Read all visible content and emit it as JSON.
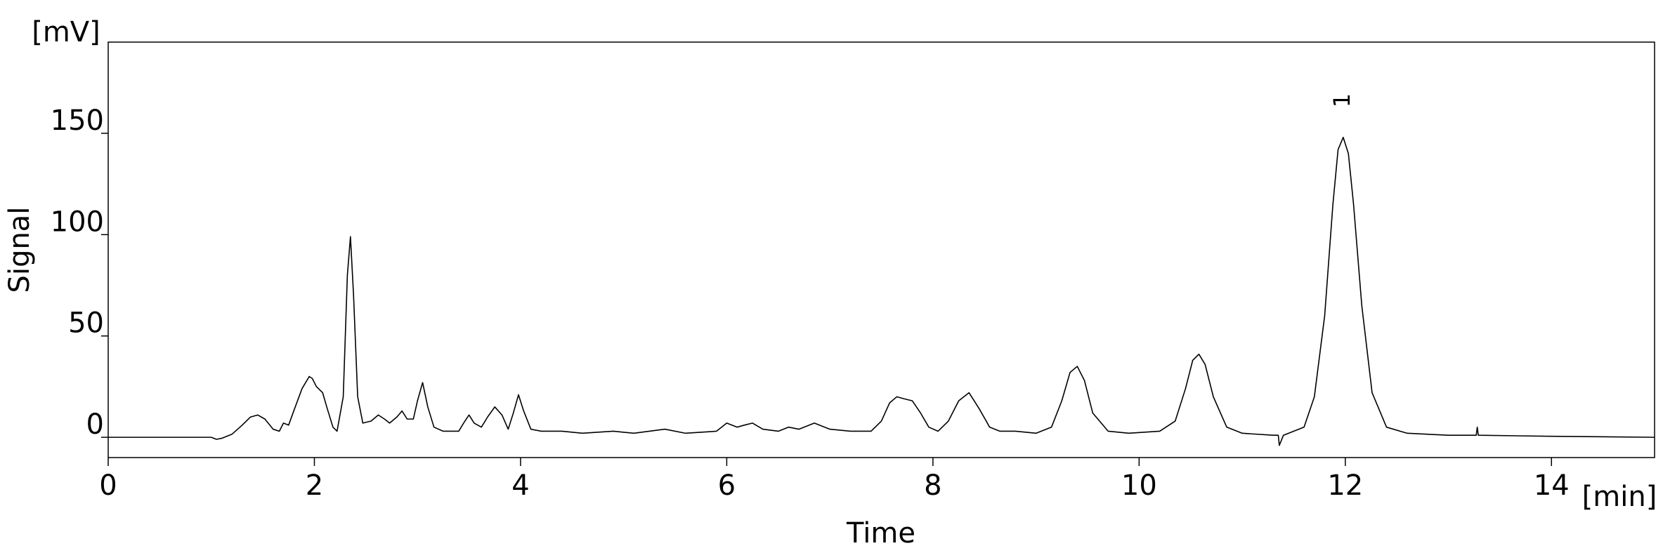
{
  "chart_data": {
    "type": "line",
    "x_label": "Time",
    "y_label": "Signal",
    "x_unit": "[min]",
    "y_unit": "[mV]",
    "color": "#000000",
    "xlim": [
      0,
      15
    ],
    "xticks": [
      0,
      2,
      4,
      6,
      8,
      10,
      12,
      14
    ],
    "ylim": [
      -10,
      195
    ],
    "yticks": [
      0,
      50,
      100,
      150
    ],
    "grid": false,
    "annotations": [
      {
        "text": "1",
        "x": 11.98
      }
    ],
    "x": [
      0,
      1.0,
      1.05,
      1.1,
      1.2,
      1.3,
      1.38,
      1.45,
      1.52,
      1.6,
      1.66,
      1.7,
      1.75,
      1.8,
      1.88,
      1.95,
      1.98,
      2.02,
      2.08,
      2.12,
      2.18,
      2.22,
      2.28,
      2.32,
      2.35,
      2.38,
      2.42,
      2.47,
      2.55,
      2.62,
      2.68,
      2.73,
      2.8,
      2.85,
      2.9,
      2.96,
      3.0,
      3.05,
      3.1,
      3.16,
      3.25,
      3.4,
      3.46,
      3.5,
      3.55,
      3.62,
      3.68,
      3.75,
      3.82,
      3.88,
      3.93,
      3.98,
      4.03,
      4.1,
      4.2,
      4.4,
      4.6,
      4.9,
      5.1,
      5.4,
      5.6,
      5.9,
      6.0,
      6.1,
      6.17,
      6.25,
      6.35,
      6.5,
      6.6,
      6.7,
      6.85,
      7.0,
      7.2,
      7.4,
      7.5,
      7.58,
      7.65,
      7.72,
      7.8,
      7.88,
      7.96,
      8.05,
      8.15,
      8.25,
      8.35,
      8.45,
      8.55,
      8.65,
      8.8,
      9.0,
      9.15,
      9.25,
      9.33,
      9.4,
      9.47,
      9.55,
      9.7,
      9.9,
      10.2,
      10.35,
      10.45,
      10.52,
      10.58,
      10.64,
      10.72,
      10.85,
      11.0,
      11.3,
      11.35,
      11.36,
      11.4,
      11.6,
      11.7,
      11.8,
      11.88,
      11.93,
      11.98,
      12.03,
      12.08,
      12.16,
      12.26,
      12.4,
      12.6,
      13.0,
      13.27,
      13.28,
      13.29,
      14.0,
      15.0
    ],
    "values": [
      0,
      0,
      -1,
      -0.5,
      1.5,
      6,
      10,
      11,
      9,
      4,
      3,
      7,
      6,
      13,
      24,
      30,
      29,
      25,
      22,
      15,
      5,
      3,
      20,
      80,
      99,
      70,
      20,
      7,
      8,
      11,
      9,
      7,
      10,
      13,
      9,
      9,
      18,
      27,
      15,
      5,
      3,
      3,
      8,
      11,
      7,
      5,
      10,
      15,
      11,
      4,
      12,
      21,
      13,
      4,
      3,
      3,
      2,
      3,
      2,
      4,
      2,
      3,
      7,
      5,
      6,
      7,
      4,
      3,
      5,
      4,
      7,
      4,
      3,
      3,
      8,
      17,
      20,
      19,
      18,
      12,
      5,
      3,
      8,
      18,
      22,
      14,
      5,
      3,
      3,
      2,
      5,
      18,
      32,
      35,
      28,
      12,
      3,
      2,
      3,
      8,
      24,
      38,
      41,
      36,
      20,
      5,
      2,
      1,
      1,
      -4,
      1,
      5,
      20,
      60,
      115,
      142,
      148,
      140,
      115,
      65,
      22,
      5,
      2,
      1,
      1,
      5,
      1,
      0.5,
      0
    ]
  }
}
